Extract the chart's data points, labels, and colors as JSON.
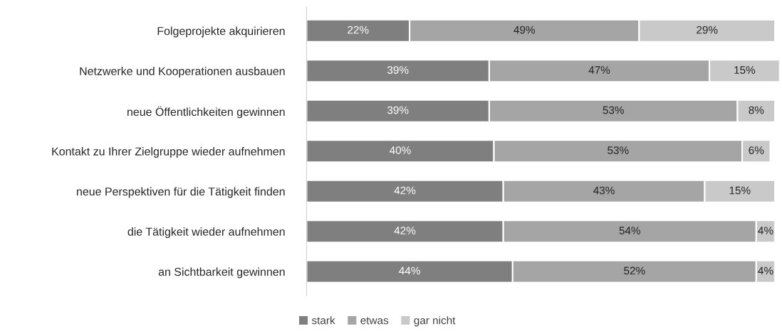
{
  "chart_data": {
    "type": "bar",
    "orientation": "horizontal",
    "stacked": true,
    "legend": "bottom",
    "grid": false,
    "tick_labels": "y",
    "categories": [
      "Folgeprojekte akquirieren",
      "Netzwerke und Kooperationen ausbauen",
      "neue Öffentlichkeiten gewinnen",
      "Kontakt zu Ihrer Zielgruppe wieder aufnehmen",
      "neue Perspektiven für die Tätigkeit finden",
      "die Tätigkeit wieder aufnehmen",
      "an Sichtbarkeit gewinnen"
    ],
    "series": [
      {
        "name": "stark",
        "color": "#7f7f7f",
        "values": [
          22,
          39,
          39,
          40,
          42,
          42,
          44
        ],
        "value_labels": [
          "22%",
          "39%",
          "39%",
          "40%",
          "42%",
          "42%",
          "44%"
        ]
      },
      {
        "name": "etwas",
        "color": "#a5a5a5",
        "values": [
          49,
          47,
          53,
          53,
          43,
          54,
          52
        ],
        "value_labels": [
          "49%",
          "47%",
          "53%",
          "53%",
          "43%",
          "54%",
          "52%"
        ]
      },
      {
        "name": "gar nicht",
        "color": "#c9c9c9",
        "values": [
          29,
          15,
          8,
          6,
          15,
          4,
          4
        ],
        "value_labels": [
          "29%",
          "15%",
          "8%",
          "6%",
          "15%",
          "4%",
          "4%"
        ]
      }
    ]
  }
}
